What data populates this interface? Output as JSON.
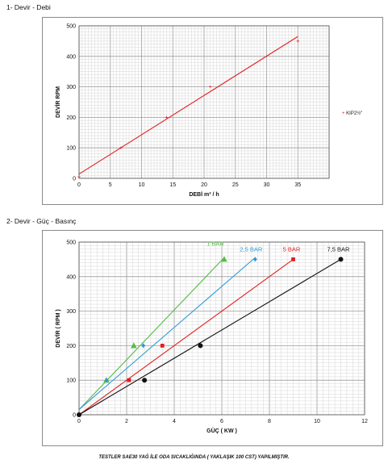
{
  "charts": [
    {
      "heading": "1- Devir - Debi"
    },
    {
      "heading": "2- Devir - Güç - Basınç"
    }
  ],
  "footnote": "TESTLER SAE30 YAĞ İLE ODA SICAKLIĞINDA ( YAKLAŞIK 100 CST) YAPILMIŞTIR.",
  "chart_data": [
    {
      "type": "line",
      "title": "",
      "xlabel": "DEBİ m³ / h",
      "ylabel": "DEVİR RPM",
      "xlim": [
        0,
        40
      ],
      "ylim": [
        0,
        500
      ],
      "x_ticks": [
        "0",
        "5",
        "10",
        "15",
        "20",
        "25",
        "30",
        "35"
      ],
      "y_ticks": [
        "0",
        "100",
        "200",
        "300",
        "400",
        "500"
      ],
      "grid": true,
      "legend": "right",
      "series": [
        {
          "name": "KIP2½\"",
          "color": "#e02020",
          "marker": "+",
          "points": [
            [
              0,
              5
            ],
            [
              6.7,
              100
            ],
            [
              14,
              200
            ],
            [
              21,
              300
            ],
            [
              35,
              450
            ]
          ],
          "fit": [
            [
              0,
              14
            ],
            [
              35,
              465
            ]
          ]
        }
      ]
    },
    {
      "type": "line",
      "title": "",
      "xlabel": "GÜÇ ( KW )",
      "ylabel": "DEVİR ( RPM )",
      "xlim": [
        0,
        12
      ],
      "ylim": [
        0,
        500
      ],
      "x_ticks": [
        "0",
        "2",
        "4",
        "6",
        "8",
        "10",
        "12"
      ],
      "y_ticks": [
        "0",
        "100",
        "200",
        "300",
        "400",
        "500"
      ],
      "grid": true,
      "series": [
        {
          "name": "1 BAR",
          "color": "#55bb44",
          "marker": "triangle",
          "points": [
            [
              1.15,
              100
            ],
            [
              2.3,
              200
            ],
            [
              6.1,
              450
            ]
          ],
          "fit": [
            [
              0,
              15
            ],
            [
              6.1,
              455
            ]
          ]
        },
        {
          "name": "2,5 BAR",
          "color": "#2e9bd6",
          "marker": "diamond",
          "points": [
            [
              1.15,
              100
            ],
            [
              2.7,
              200
            ],
            [
              7.4,
              450
            ]
          ],
          "fit": [
            [
              0,
              15
            ],
            [
              7.4,
              455
            ]
          ]
        },
        {
          "name": "5 BAR",
          "color": "#e02020",
          "marker": "square",
          "points": [
            [
              2.1,
              100
            ],
            [
              3.5,
              200
            ],
            [
              9.0,
              450
            ]
          ],
          "fit": [
            [
              0,
              0
            ],
            [
              9.0,
              450
            ]
          ]
        },
        {
          "name": "7,5 BAR",
          "color": "#111111",
          "marker": "circle",
          "points": [
            [
              0,
              0
            ],
            [
              2.75,
              100
            ],
            [
              5.1,
              200
            ],
            [
              11.0,
              450
            ]
          ],
          "fit": [
            [
              0,
              0
            ],
            [
              11.0,
              450
            ]
          ]
        }
      ]
    }
  ]
}
